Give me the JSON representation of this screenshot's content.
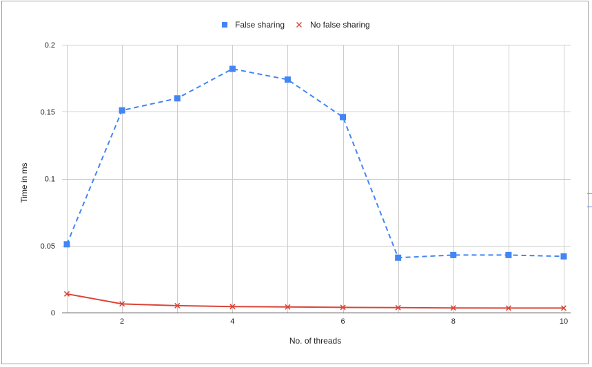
{
  "chart_data": {
    "type": "line",
    "title": "",
    "xlabel": "No. of threads",
    "ylabel": "Time in ms",
    "xlim": [
      1,
      10
    ],
    "ylim": [
      0,
      0.2
    ],
    "x_ticks": [
      2,
      4,
      6,
      8,
      10
    ],
    "x_tick_labels": [
      "2",
      "4",
      "6",
      "8",
      "10"
    ],
    "y_ticks": [
      0,
      0.05,
      0.1,
      0.15,
      0.2
    ],
    "y_tick_labels": [
      "0",
      "0.05",
      "0.1",
      "0.15",
      "0.2"
    ],
    "x_gridlines": [
      1,
      2,
      3,
      4,
      5,
      6,
      7,
      8,
      9,
      10
    ],
    "grid": true,
    "legend_position": "top-center",
    "x": [
      1,
      2,
      3,
      4,
      5,
      6,
      7,
      8,
      9,
      10
    ],
    "series": [
      {
        "name": "False sharing",
        "color": "#4285f4",
        "marker": "square",
        "line_style": "dashed",
        "values": [
          0.051,
          0.151,
          0.16,
          0.182,
          0.174,
          0.146,
          0.041,
          0.043,
          0.043,
          0.042
        ]
      },
      {
        "name": "No false sharing",
        "color": "#db4437",
        "marker": "x",
        "line_style": "solid",
        "values": [
          0.014,
          0.0065,
          0.0052,
          0.0045,
          0.0042,
          0.0039,
          0.0037,
          0.0035,
          0.0034,
          0.0034
        ]
      }
    ]
  }
}
